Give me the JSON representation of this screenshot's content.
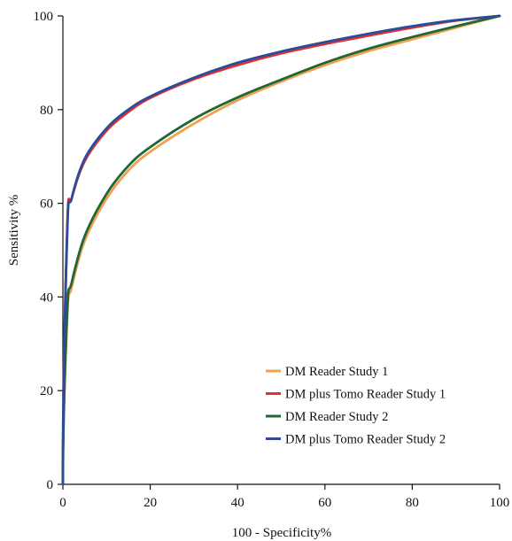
{
  "chart_data": {
    "type": "line",
    "title": "",
    "xlabel": "100 - Specificity%",
    "ylabel": "Sensitivity %",
    "xlim": [
      0,
      100
    ],
    "ylim": [
      0,
      100
    ],
    "xticks": [
      0,
      20,
      40,
      60,
      80,
      100
    ],
    "yticks": [
      0,
      20,
      40,
      60,
      80,
      100
    ],
    "grid": false,
    "legend_position": "bottom-right",
    "series": [
      {
        "name": "DM Reader Study 1",
        "color": "#f0a050",
        "x": [
          0,
          1,
          2,
          5,
          10,
          15,
          20,
          30,
          40,
          50,
          60,
          70,
          80,
          90,
          100
        ],
        "y": [
          0,
          36,
          42,
          52,
          61,
          67,
          71,
          77,
          82,
          86,
          89.5,
          92.5,
          95,
          97.5,
          100
        ]
      },
      {
        "name": "DM plus Tomo Reader Study 1",
        "color": "#e03030",
        "x": [
          0,
          1,
          2,
          5,
          10,
          15,
          20,
          30,
          40,
          50,
          60,
          70,
          80,
          90,
          100
        ],
        "y": [
          0,
          55,
          61,
          69,
          75.5,
          79.5,
          82.5,
          86.5,
          89.5,
          92,
          94,
          95.8,
          97.5,
          99,
          100
        ]
      },
      {
        "name": "DM Reader Study 2",
        "color": "#226633",
        "x": [
          0,
          1,
          2,
          5,
          10,
          15,
          20,
          30,
          40,
          50,
          60,
          70,
          80,
          90,
          100
        ],
        "y": [
          0,
          37,
          43,
          53,
          62,
          68,
          72,
          78,
          82.6,
          86.4,
          90,
          93,
          95.5,
          97.8,
          100
        ]
      },
      {
        "name": "DM plus Tomo Reader Study 2",
        "color": "#2a4c9a",
        "x": [
          0,
          1,
          2,
          5,
          10,
          15,
          20,
          30,
          40,
          50,
          60,
          70,
          80,
          90,
          100
        ],
        "y": [
          0,
          54,
          61,
          69.5,
          76,
          80,
          82.8,
          86.8,
          90,
          92.4,
          94.4,
          96.2,
          97.8,
          99.1,
          100
        ]
      }
    ]
  }
}
